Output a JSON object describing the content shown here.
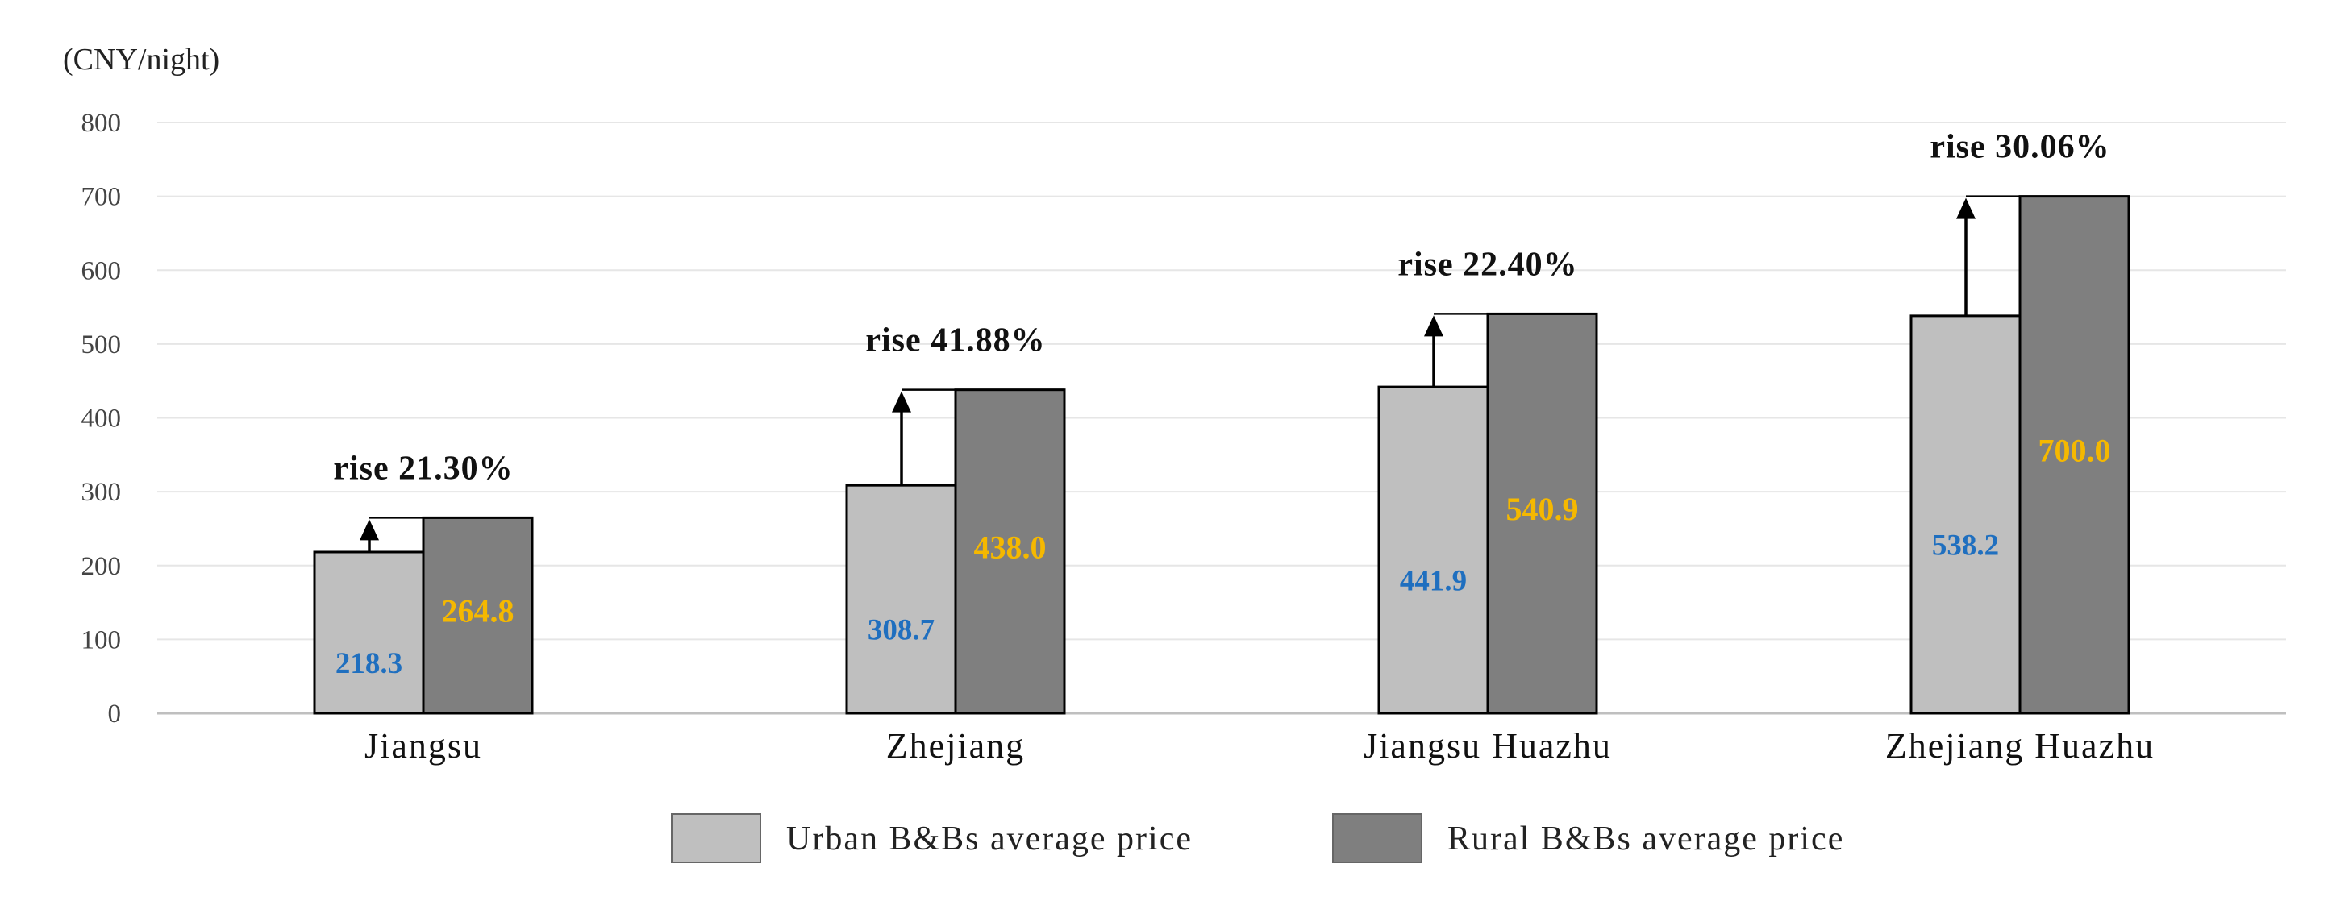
{
  "chart_data": {
    "type": "bar",
    "ylabel": "(CNY/night)",
    "ylim": [
      0,
      800
    ],
    "yticks": [
      0,
      100,
      200,
      300,
      400,
      500,
      600,
      700,
      800
    ],
    "grid": true,
    "legend_position": "bottom-center",
    "categories": [
      "Jiangsu",
      "Zhejiang",
      "Jiangsu Huazhu",
      "Zhejiang Huazhu"
    ],
    "series": [
      {
        "name": "Urban B&Bs average price",
        "values": [
          218.3,
          308.7,
          441.9,
          538.2
        ],
        "color": "#bfbfbf",
        "label_color": "#1f6fbf"
      },
      {
        "name": "Rural B&Bs average price",
        "values": [
          264.8,
          438.0,
          540.9,
          700.0
        ],
        "color": "#7f7f7f",
        "label_color": "#f5b800"
      }
    ],
    "value_labels": {
      "urban": [
        "218.3",
        "308.7",
        "441.9",
        "538.2"
      ],
      "rural": [
        "264.8",
        "438.0",
        "540.9",
        "700.0"
      ]
    },
    "annotations": [
      "rise 21.30%",
      "rise 41.88%",
      "rise 22.40%",
      "rise 30.06%"
    ]
  }
}
